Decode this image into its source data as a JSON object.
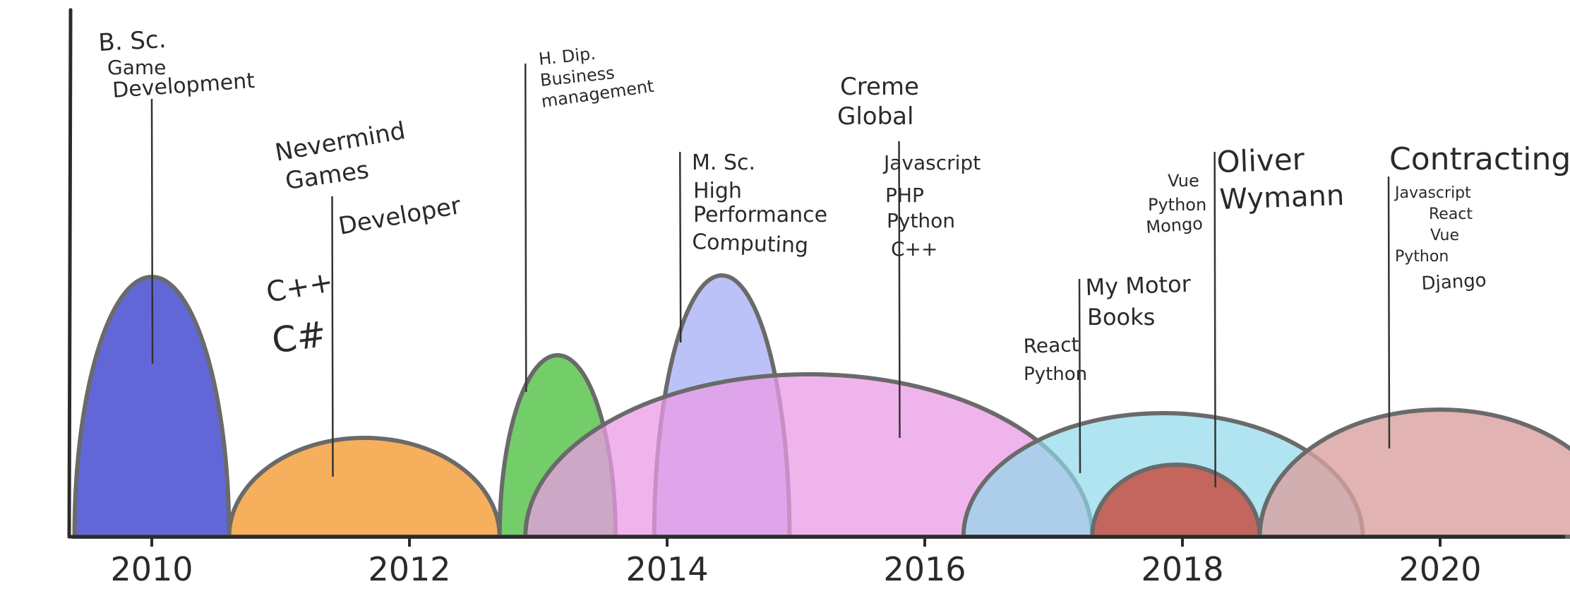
{
  "chart_data": {
    "type": "timeline",
    "x_axis": {
      "ticks": [
        "2010",
        "2012",
        "2014",
        "2016",
        "2018",
        "2020"
      ]
    },
    "periods": [
      {
        "id": "bsc",
        "start": 2009.4,
        "end": 2010.6,
        "color": "#5a5fd6",
        "opacity": 0.95
      },
      {
        "id": "nevermind",
        "start": 2010.6,
        "end": 2012.7,
        "color": "#f5a64a",
        "opacity": 0.9
      },
      {
        "id": "hdip",
        "start": 2012.7,
        "end": 2013.6,
        "color": "#5bc44e",
        "opacity": 0.85
      },
      {
        "id": "msc",
        "start": 2013.9,
        "end": 2014.95,
        "color": "#aab3f5",
        "opacity": 0.8
      },
      {
        "id": "creme",
        "start": 2012.9,
        "end": 2017.3,
        "color": "#eb9be6",
        "opacity": 0.75
      },
      {
        "id": "mymotor",
        "start": 2016.3,
        "end": 2019.4,
        "color": "#8ed9ea",
        "opacity": 0.7
      },
      {
        "id": "oliver",
        "start": 2017.3,
        "end": 2018.6,
        "color": "#c8584e",
        "opacity": 0.9
      },
      {
        "id": "contracting",
        "start": 2018.6,
        "end": 2021.4,
        "color": "#d9a0a0",
        "opacity": 0.8
      }
    ],
    "labels": {
      "bsc": [
        "B. Sc.",
        "Game",
        "Development"
      ],
      "nevermind_title": [
        "Nevermind",
        "Games"
      ],
      "nevermind_role": "Developer",
      "nevermind_tech": [
        "C++",
        "C#"
      ],
      "hdip": [
        "H. Dip.",
        "Business",
        "management"
      ],
      "msc": [
        "M. Sc.",
        "High",
        "Performance",
        "Computing"
      ],
      "creme_title": [
        "Creme",
        "Global"
      ],
      "creme_tech": [
        "Javascript",
        "PHP",
        "Python",
        "C++"
      ],
      "mymotor_title": [
        "My Motor",
        "Books"
      ],
      "mymotor_tech": [
        "React",
        "Python"
      ],
      "oliver_title": [
        "Oliver",
        "Wymann"
      ],
      "oliver_tech": [
        "Vue",
        "Python",
        "Mongo"
      ],
      "contracting_title": "Contracting",
      "contracting_tech": [
        "Javascript",
        "React",
        "Vue",
        "Python",
        "Django"
      ]
    }
  }
}
